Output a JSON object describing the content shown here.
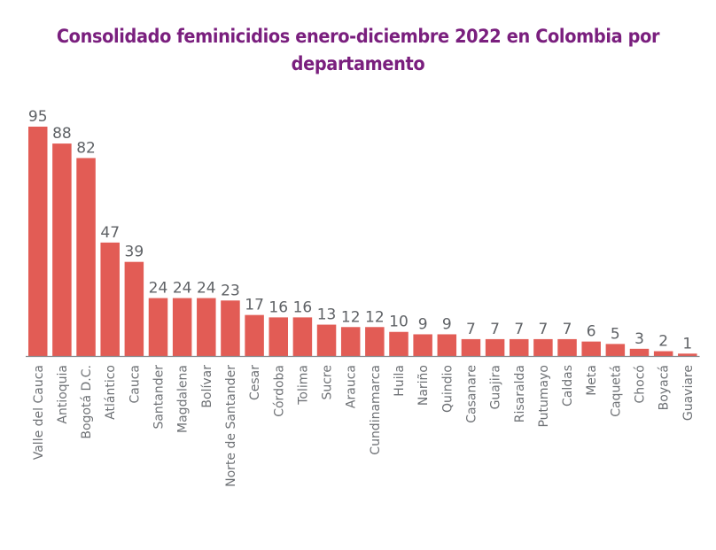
{
  "chart_data": {
    "type": "bar",
    "title": "Consolidado feminicidios enero-diciembre 2022 en Colombia por departamento",
    "title_lines": [
      "Consolidado feminicidios enero-diciembre 2022 en Colombia por",
      "departamento"
    ],
    "xlabel": "",
    "ylabel": "",
    "ylim": [
      0,
      95
    ],
    "grid": false,
    "categories": [
      "Valle del Cauca",
      "Antioquia",
      "Bogotá D.C.",
      "Atlántico",
      "Cauca",
      "Santander",
      "Magdalena",
      "Bolívar",
      "Norte de Santander",
      "Cesar",
      "Córdoba",
      "Tolima",
      "Sucre",
      "Arauca",
      "Cundinamarca",
      "Huila",
      "Nariño",
      "Quindio",
      "Casanare",
      "Guajira",
      "Risaralda",
      "Putumayo",
      "Caldas",
      "Meta",
      "Caquetá",
      "Chocó",
      "Boyacá",
      "Guaviare"
    ],
    "values": [
      95,
      88,
      82,
      47,
      39,
      24,
      24,
      24,
      23,
      17,
      16,
      16,
      13,
      12,
      12,
      10,
      9,
      9,
      7,
      7,
      7,
      7,
      7,
      6,
      5,
      3,
      2,
      1
    ],
    "bar_color": "#e25c55",
    "axis_color": "#8a8d91"
  }
}
